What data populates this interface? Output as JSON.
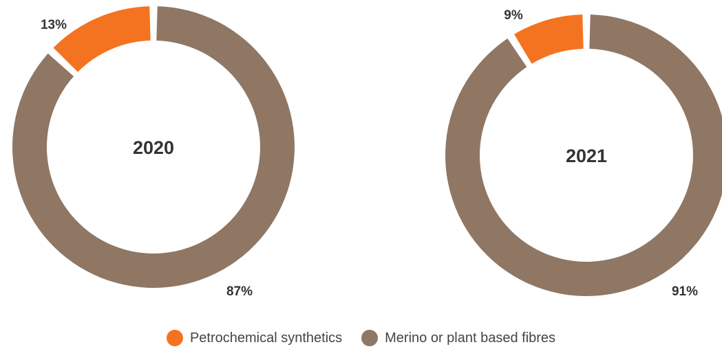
{
  "chart_data": [
    {
      "type": "pie",
      "variant": "donut",
      "center_label": "2020",
      "slices": [
        {
          "category": "Petrochemical synthetics",
          "value": 13,
          "label": "13%"
        },
        {
          "category": "Merino or plant based fibres",
          "value": 87,
          "label": "87%"
        }
      ]
    },
    {
      "type": "pie",
      "variant": "donut",
      "center_label": "2021",
      "slices": [
        {
          "category": "Petrochemical synthetics",
          "value": 9,
          "label": "9%"
        },
        {
          "category": "Merino or plant based fibres",
          "value": 91,
          "label": "91%"
        }
      ]
    }
  ],
  "legend": {
    "placement": "bottom-center",
    "items": [
      {
        "label": "Petrochemical synthetics",
        "color": "#F47321"
      },
      {
        "label": "Merino or plant based fibres",
        "color": "#8F7764"
      }
    ]
  },
  "colors": {
    "Petrochemical synthetics": "#F47321",
    "Merino or plant based fibres": "#8F7764"
  }
}
